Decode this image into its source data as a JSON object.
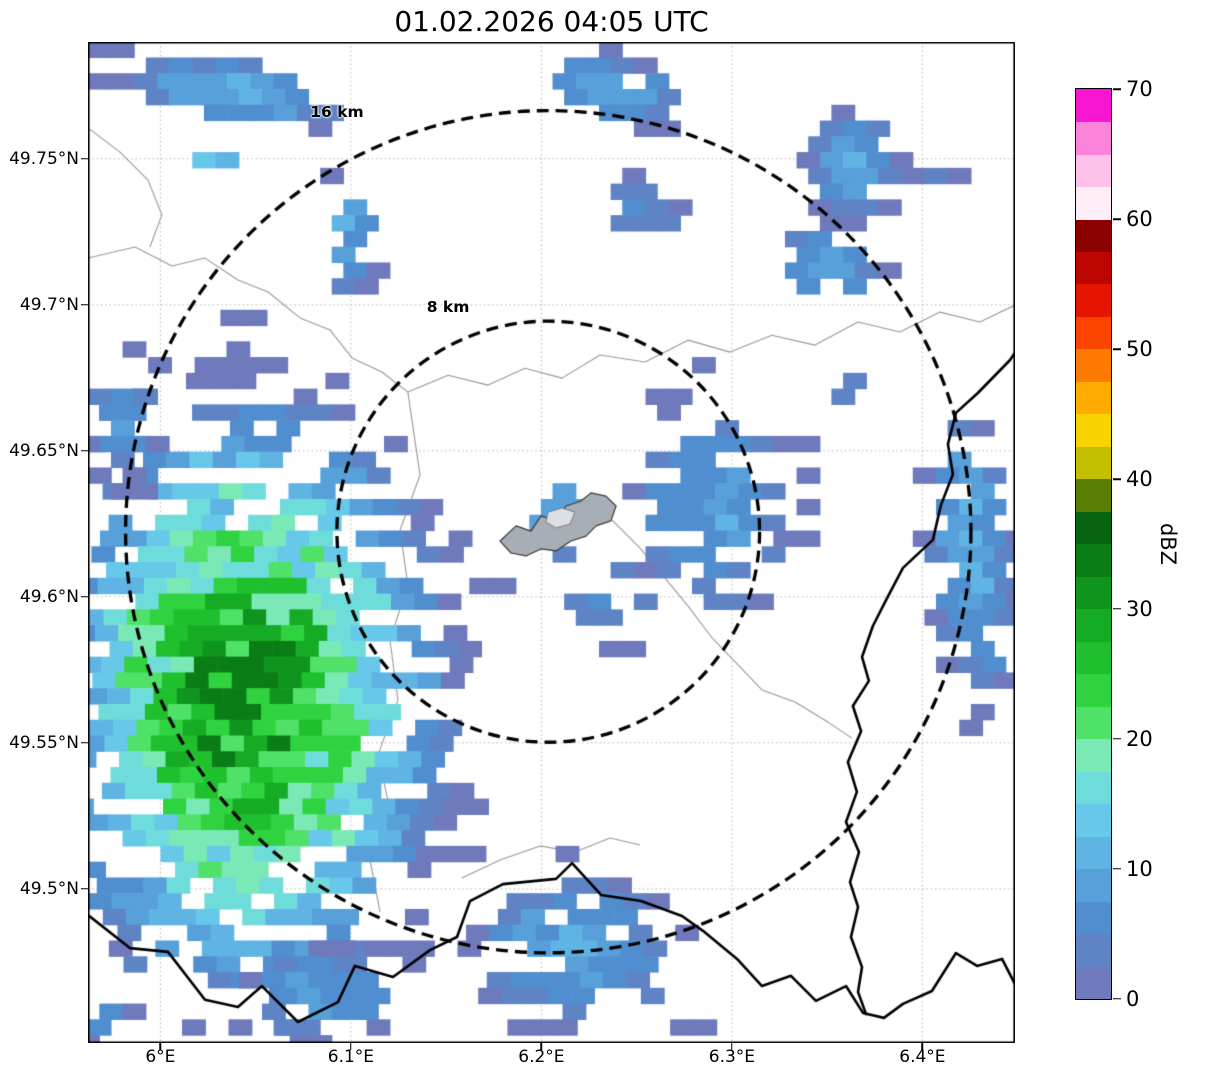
{
  "chart_data": {
    "type": "heatmap",
    "title": "01.02.2026 04:05 UTC",
    "axes": {
      "lon_range": [
        5.962,
        6.4486
      ],
      "lat_range": [
        49.4472,
        49.79
      ],
      "x_ticks": [
        {
          "label": "6°E",
          "value": 6.0
        },
        {
          "label": "6.1°E",
          "value": 6.1
        },
        {
          "label": "6.2°E",
          "value": 6.2
        },
        {
          "label": "6.3°E",
          "value": 6.3
        },
        {
          "label": "6.4°E",
          "value": 6.4
        }
      ],
      "y_ticks": [
        {
          "label": "49.75°N",
          "value": 49.75
        },
        {
          "label": "49.7°N",
          "value": 49.7
        },
        {
          "label": "49.65°N",
          "value": 49.65
        },
        {
          "label": "49.6°N",
          "value": 49.6
        },
        {
          "label": "49.55°N",
          "value": 49.55
        },
        {
          "label": "49.5°N",
          "value": 49.5
        }
      ],
      "grid": "dotted"
    },
    "colorbar": {
      "label": "dBZ",
      "min": 0,
      "max": 70,
      "ticks": [
        0,
        10,
        20,
        30,
        40,
        50,
        60,
        70
      ],
      "segments": [
        {
          "from": 0,
          "to": 2.5,
          "color": "#6e7abb"
        },
        {
          "from": 2.5,
          "to": 5,
          "color": "#5e84c6"
        },
        {
          "from": 5,
          "to": 7.5,
          "color": "#518ed0"
        },
        {
          "from": 7.5,
          "to": 10,
          "color": "#57a0da"
        },
        {
          "from": 10,
          "to": 12.5,
          "color": "#5fb4e4"
        },
        {
          "from": 12.5,
          "to": 15,
          "color": "#67c8e9"
        },
        {
          "from": 15,
          "to": 17.5,
          "color": "#6fdcdc"
        },
        {
          "from": 17.5,
          "to": 20,
          "color": "#7be9b5"
        },
        {
          "from": 20,
          "to": 22.5,
          "color": "#50e168"
        },
        {
          "from": 22.5,
          "to": 25,
          "color": "#2fd340"
        },
        {
          "from": 25,
          "to": 27.5,
          "color": "#1ec02d"
        },
        {
          "from": 27.5,
          "to": 30,
          "color": "#15ab24"
        },
        {
          "from": 30,
          "to": 32.5,
          "color": "#0f951e"
        },
        {
          "from": 32.5,
          "to": 35,
          "color": "#0b7d17"
        },
        {
          "from": 35,
          "to": 37.5,
          "color": "#076511"
        },
        {
          "from": 37.5,
          "to": 40,
          "color": "#587f04"
        },
        {
          "from": 40,
          "to": 42.5,
          "color": "#c2bf00"
        },
        {
          "from": 42.5,
          "to": 45,
          "color": "#f9d300"
        },
        {
          "from": 45,
          "to": 47.5,
          "color": "#ffab00"
        },
        {
          "from": 47.5,
          "to": 50,
          "color": "#ff7a00"
        },
        {
          "from": 50,
          "to": 52.5,
          "color": "#fa4400"
        },
        {
          "from": 52.5,
          "to": 55,
          "color": "#e51500"
        },
        {
          "from": 55,
          "to": 57.5,
          "color": "#bc0400"
        },
        {
          "from": 57.5,
          "to": 60,
          "color": "#8c0000"
        },
        {
          "from": 60,
          "to": 62.5,
          "color": "#feeef8"
        },
        {
          "from": 62.5,
          "to": 65,
          "color": "#fdc1ea"
        },
        {
          "from": 65,
          "to": 67.5,
          "color": "#fc83da"
        },
        {
          "from": 67.5,
          "to": 70,
          "color": "#f816d2"
        }
      ]
    },
    "ring_center": {
      "lon": 6.2036,
      "lat": 49.6223
    },
    "range_rings": [
      {
        "label": "8 km",
        "radius_km": 8,
        "label_lon": 6.151,
        "label_lat": 49.6992
      },
      {
        "label": "16 km",
        "radius_km": 16,
        "label_lon": 6.0927,
        "label_lat": 49.766
      }
    ],
    "cell_size_deg": {
      "dlon": 0.0122,
      "dlat": 0.0054
    },
    "echo_regions": [
      {
        "name": "sw-storm",
        "lon": 6.045,
        "lat": 49.565,
        "rx": 0.115,
        "ry": 0.115,
        "rot": 18,
        "peak_dbz": 33,
        "density": 1.0,
        "seed": 11,
        "skew": -0.37
      },
      {
        "name": "nw-band",
        "lon": 6.038,
        "lat": 49.773,
        "rx": 0.07,
        "ry": 0.0135,
        "rot": -6,
        "peak_dbz": 12,
        "density": 0.85,
        "seed": 21,
        "skew": 0.5
      },
      {
        "name": "nw-green-speck",
        "lon": 6.0555,
        "lat": 49.7815,
        "rx": 0.0065,
        "ry": 0.0045,
        "rot": 0,
        "peak_dbz": 22,
        "density": 1.0,
        "seed": 22,
        "skew": 0.5
      },
      {
        "name": "nw-cyan-patch",
        "lon": 6.029,
        "lat": 49.7495,
        "rx": 0.016,
        "ry": 0.009,
        "rot": 0,
        "peak_dbz": 16,
        "density": 0.9,
        "seed": 23,
        "skew": 0.5
      },
      {
        "name": "nw-vert-band",
        "lon": 6.0995,
        "lat": 49.727,
        "rx": 0.0135,
        "ry": 0.029,
        "rot": 8,
        "peak_dbz": 12,
        "density": 0.8,
        "seed": 24,
        "skew": 0.5
      },
      {
        "name": "n-center-patch",
        "lon": 6.237,
        "lat": 49.774,
        "rx": 0.04,
        "ry": 0.0145,
        "rot": -8,
        "peak_dbz": 13,
        "density": 0.85,
        "seed": 25,
        "skew": 0.5
      },
      {
        "name": "n-center-small",
        "lon": 6.2545,
        "lat": 49.732,
        "rx": 0.027,
        "ry": 0.0125,
        "rot": 0,
        "peak_dbz": 8,
        "density": 0.7,
        "seed": 26,
        "skew": 0.5
      },
      {
        "name": "ne-patch",
        "lon": 6.3645,
        "lat": 49.749,
        "rx": 0.0265,
        "ry": 0.0205,
        "rot": 10,
        "peak_dbz": 14,
        "density": 0.85,
        "seed": 27,
        "skew": 0.5
      },
      {
        "name": "ne-edge-strip",
        "lon": 6.412,
        "lat": 49.747,
        "rx": 0.008,
        "ry": 0.0165,
        "rot": 0,
        "peak_dbz": 9,
        "density": 0.8,
        "seed": 28,
        "skew": 0.5
      },
      {
        "name": "e-patch",
        "lon": 6.3515,
        "lat": 49.714,
        "rx": 0.028,
        "ry": 0.0165,
        "rot": -5,
        "peak_dbz": 12,
        "density": 0.8,
        "seed": 29,
        "skew": 0.5
      },
      {
        "name": "e-small-row",
        "lon": 6.358,
        "lat": 49.672,
        "rx": 0.023,
        "ry": 0.006,
        "rot": 0,
        "peak_dbz": 6,
        "density": 0.7,
        "seed": 30,
        "skew": 0.5
      },
      {
        "name": "center-east-cluster",
        "lon": 6.291,
        "lat": 49.632,
        "rx": 0.05,
        "ry": 0.046,
        "rot": 0,
        "peak_dbz": 10,
        "density": 0.55,
        "seed": 31,
        "skew": 0.5
      },
      {
        "name": "city-cluster",
        "lon": 6.21,
        "lat": 49.628,
        "rx": 0.034,
        "ry": 0.017,
        "rot": -10,
        "peak_dbz": 13,
        "density": 0.5,
        "seed": 32,
        "skew": 0.5
      },
      {
        "name": "center-south-sparse",
        "lon": 6.236,
        "lat": 49.599,
        "rx": 0.03,
        "ry": 0.017,
        "rot": 0,
        "peak_dbz": 8,
        "density": 0.4,
        "seed": 33,
        "skew": 0.5
      },
      {
        "name": "e-edge-band",
        "lon": 6.426,
        "lat": 49.614,
        "rx": 0.024,
        "ry": 0.06,
        "rot": 8,
        "peak_dbz": 13,
        "density": 0.75,
        "seed": 34,
        "skew": 0.5
      },
      {
        "name": "s-center-band",
        "lon": 6.218,
        "lat": 49.479,
        "rx": 0.068,
        "ry": 0.03,
        "rot": -4,
        "peak_dbz": 11,
        "density": 0.7,
        "seed": 35,
        "skew": -0.37
      },
      {
        "name": "s-left-band",
        "lon": 6.084,
        "lat": 49.464,
        "rx": 0.055,
        "ry": 0.018,
        "rot": 0,
        "peak_dbz": 9,
        "density": 0.7,
        "seed": 36,
        "skew": 0.5
      },
      {
        "name": "sw-corner",
        "lon": 5.971,
        "lat": 49.455,
        "rx": 0.018,
        "ry": 0.013,
        "rot": 0,
        "peak_dbz": 7,
        "density": 0.8,
        "seed": 37,
        "skew": 0.5
      },
      {
        "name": "w-edge-mid",
        "lon": 5.979,
        "lat": 49.661,
        "rx": 0.02,
        "ry": 0.026,
        "rot": 0,
        "peak_dbz": 9,
        "density": 0.8,
        "seed": 38,
        "skew": 0.5
      },
      {
        "name": "ne-corner-tiny",
        "lon": 6.4095,
        "lat": 49.774,
        "rx": 0.007,
        "ry": 0.006,
        "rot": 0,
        "peak_dbz": 5,
        "density": 0.7,
        "seed": 39,
        "skew": 0.5
      }
    ],
    "map_layers": {
      "country_borders": [
        [
          [
            5.962,
            49.491
          ],
          [
            5.984,
            49.4797
          ],
          [
            6.004,
            49.4784
          ],
          [
            6.0234,
            49.462
          ],
          [
            6.0407,
            49.4595
          ],
          [
            6.0533,
            49.4667
          ],
          [
            6.0722,
            49.4544
          ],
          [
            6.0932,
            49.4612
          ],
          [
            6.1021,
            49.4736
          ],
          [
            6.1221,
            49.4698
          ],
          [
            6.1415,
            49.479
          ],
          [
            6.1557,
            49.4835
          ],
          [
            6.1625,
            49.4958
          ],
          [
            6.1798,
            49.5016
          ],
          [
            6.2077,
            49.5034
          ],
          [
            6.2161,
            49.5088
          ],
          [
            6.2313,
            49.4979
          ],
          [
            6.2523,
            49.4958
          ],
          [
            6.2738,
            49.4907
          ],
          [
            6.2848,
            49.4856
          ],
          [
            6.3027,
            49.476
          ],
          [
            6.3158,
            49.4667
          ],
          [
            6.331,
            49.4702
          ],
          [
            6.3441,
            49.4616
          ],
          [
            6.3599,
            49.4667
          ],
          [
            6.3688,
            49.4575
          ],
          [
            6.3798,
            49.4558
          ],
          [
            6.3898,
            49.4606
          ],
          [
            6.405,
            49.465
          ],
          [
            6.4176,
            49.478
          ],
          [
            6.4287,
            49.4736
          ],
          [
            6.4418,
            49.476
          ],
          [
            6.4491,
            49.4667
          ]
        ],
        [
          [
            6.449,
            49.684
          ],
          [
            6.446,
            49.6811
          ],
          [
            6.4291,
            49.6698
          ],
          [
            6.4176,
            49.663
          ],
          [
            6.4134,
            49.6523
          ],
          [
            6.416,
            49.642
          ],
          [
            6.4097,
            49.6314
          ],
          [
            6.4055,
            49.6195
          ],
          [
            6.3898,
            49.6099
          ],
          [
            6.3809,
            49.5989
          ],
          [
            6.374,
            49.59
          ],
          [
            6.3683,
            49.5794
          ],
          [
            6.3719,
            49.5712
          ],
          [
            6.3635,
            49.5626
          ],
          [
            6.3678,
            49.554
          ],
          [
            6.3609,
            49.5434
          ],
          [
            6.3656,
            49.5332
          ],
          [
            6.3599,
            49.5229
          ],
          [
            6.3667,
            49.5126
          ],
          [
            6.362,
            49.5023
          ],
          [
            6.3662,
            49.4938
          ],
          [
            6.3625,
            49.4835
          ],
          [
            6.3683,
            49.4732
          ],
          [
            6.3662,
            49.4647
          ],
          [
            6.3704,
            49.4571
          ]
        ]
      ],
      "admin_lines": [
        [
          [
            5.962,
            49.716
          ],
          [
            5.9867,
            49.7198
          ],
          [
            6.0061,
            49.7133
          ],
          [
            6.0234,
            49.716
          ],
          [
            6.0407,
            49.7085
          ],
          [
            6.0565,
            49.7044
          ],
          [
            6.0733,
            49.6955
          ],
          [
            6.089,
            49.6914
          ],
          [
            6.1006,
            49.6818
          ],
          [
            6.1163,
            49.677
          ],
          [
            6.1299,
            49.6701
          ]
        ],
        [
          [
            6.1299,
            49.6701
          ],
          [
            6.1363,
            49.6417
          ],
          [
            6.1258,
            49.6229
          ],
          [
            6.1299,
            49.604
          ],
          [
            6.1205,
            49.5852
          ],
          [
            6.1247,
            49.5647
          ],
          [
            6.1142,
            49.5458
          ],
          [
            6.1205,
            49.527
          ],
          [
            6.11,
            49.5099
          ],
          [
            6.1153,
            49.4921
          ]
        ],
        [
          [
            6.1299,
            49.6701
          ],
          [
            6.151,
            49.6759
          ],
          [
            6.172,
            49.6725
          ],
          [
            6.1914,
            49.6783
          ],
          [
            6.2108,
            49.6749
          ],
          [
            6.2308,
            49.6828
          ],
          [
            6.2544,
            49.6804
          ],
          [
            6.277,
            49.6879
          ],
          [
            6.299,
            49.6838
          ],
          [
            6.321,
            49.6896
          ],
          [
            6.3436,
            49.6862
          ],
          [
            6.3662,
            49.6941
          ],
          [
            6.3882,
            49.6907
          ],
          [
            6.4092,
            49.6975
          ],
          [
            6.4302,
            49.6941
          ],
          [
            6.4486,
            49.6999
          ]
        ],
        [
          [
            6.2371,
            49.6263
          ],
          [
            6.2518,
            49.6167
          ],
          [
            6.2649,
            49.6064
          ],
          [
            6.277,
            49.5968
          ],
          [
            6.2896,
            49.5859
          ],
          [
            6.3017,
            49.5777
          ],
          [
            6.3158,
            49.5681
          ],
          [
            6.3331,
            49.564
          ],
          [
            6.3504,
            49.5571
          ],
          [
            6.363,
            49.5516
          ]
        ],
        [
          [
            6.1583,
            49.5037
          ],
          [
            6.1783,
            49.5099
          ],
          [
            6.1993,
            49.5147
          ],
          [
            6.2177,
            49.5126
          ],
          [
            6.236,
            49.5174
          ],
          [
            6.2518,
            49.515
          ]
        ],
        [
          [
            5.962,
            49.7606
          ],
          [
            5.9788,
            49.7523
          ],
          [
            5.9935,
            49.7427
          ],
          [
            6.0008,
            49.7308
          ],
          [
            5.9945,
            49.7198
          ]
        ]
      ],
      "urban_area": [
        [
          6.1783,
          49.6191
        ],
        [
          6.1867,
          49.6243
        ],
        [
          6.1945,
          49.6225
        ],
        [
          6.1998,
          49.6277
        ],
        [
          6.2077,
          49.626
        ],
        [
          6.2129,
          49.6311
        ],
        [
          6.2208,
          49.6328
        ],
        [
          6.226,
          49.6356
        ],
        [
          6.2339,
          49.6345
        ],
        [
          6.2392,
          49.6311
        ],
        [
          6.2365,
          49.626
        ],
        [
          6.2287,
          49.6243
        ],
        [
          6.2234,
          49.6208
        ],
        [
          6.2155,
          49.6191
        ],
        [
          6.2077,
          49.6157
        ],
        [
          6.1998,
          49.6164
        ],
        [
          6.1919,
          49.614
        ],
        [
          6.184,
          49.615
        ]
      ],
      "urban_area_inner": [
        [
          6.2035,
          49.629
        ],
        [
          6.2108,
          49.6304
        ],
        [
          6.2176,
          49.629
        ],
        [
          6.215,
          49.6249
        ],
        [
          6.2077,
          49.6236
        ],
        [
          6.2024,
          49.6256
        ]
      ]
    }
  }
}
